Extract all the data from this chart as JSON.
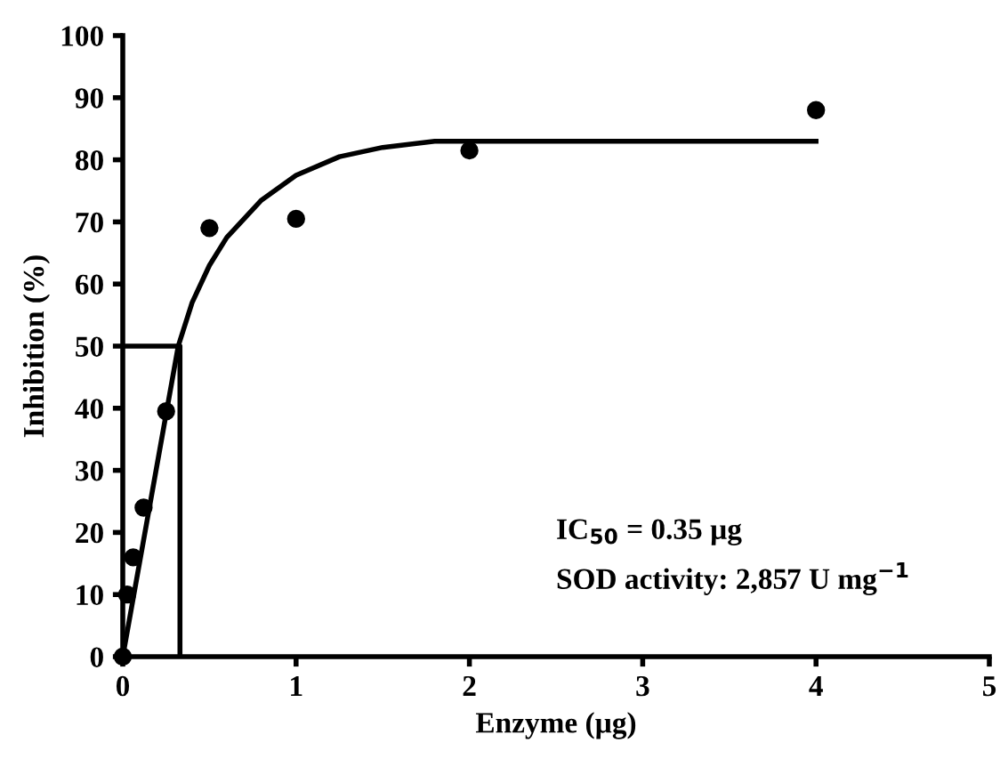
{
  "chart_data": {
    "type": "scatter",
    "xlabel": "Enzyme (µg)",
    "ylabel": "Inhibition (%)",
    "xlim": [
      0,
      5
    ],
    "xticks": [
      0,
      1,
      2,
      3,
      4,
      5
    ],
    "ylim": [
      0,
      100
    ],
    "yticks": [
      0,
      10,
      20,
      30,
      40,
      50,
      60,
      70,
      80,
      90,
      100
    ],
    "grid": false,
    "legend": false,
    "series": [
      {
        "marker": "circle",
        "color": "#000000",
        "x": [
          0,
          0.025,
          0.06,
          0.12,
          0.25,
          0.5,
          1,
          2,
          4
        ],
        "values": [
          0,
          10,
          16,
          24,
          39.5,
          69,
          70.5,
          81.5,
          88
        ]
      },
      {
        "type": "line",
        "marker": "none",
        "line_style": "solid",
        "color": "#000000",
        "x": [
          0,
          0.32,
          0.4,
          0.5,
          0.6,
          0.8,
          1,
          1.25,
          1.5,
          1.8,
          2,
          4
        ],
        "values": [
          0,
          50,
          57,
          63,
          67.5,
          73.5,
          77.5,
          80.5,
          82,
          83,
          83,
          83
        ]
      },
      {
        "type": "line",
        "marker": "none",
        "line_style": "solid",
        "color": "#000000",
        "x": [
          0,
          0.33,
          0.33
        ],
        "values": [
          50,
          50,
          0
        ]
      }
    ],
    "annotations": [
      "IC$_{50}$ = 0.35 µg",
      "SOD activity: 2,857 U mg$^{−1}$"
    ]
  }
}
